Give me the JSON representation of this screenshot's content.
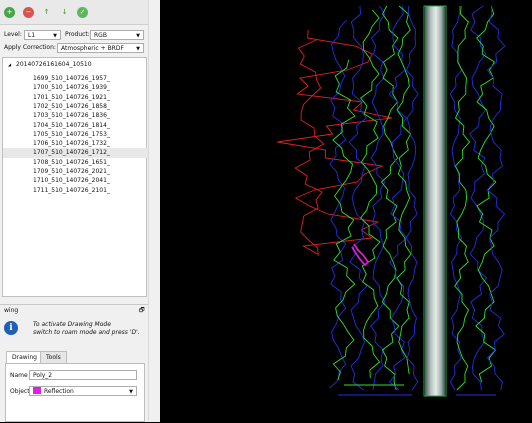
{
  "toolbar": {
    "icons": [
      {
        "name": "add-icon",
        "glyph": "+",
        "color": "#47a447"
      },
      {
        "name": "remove-icon",
        "glyph": "−",
        "color": "#d9534f"
      },
      {
        "name": "move-up-icon",
        "glyph": "↑",
        "color": "#4cae4c"
      },
      {
        "name": "move-down-icon",
        "glyph": "↓",
        "color": "#4cae4c"
      },
      {
        "name": "apply-icon",
        "glyph": "✓",
        "color": "#5cb85c"
      }
    ]
  },
  "settings": {
    "level_label": "Level:",
    "level_value": "L1",
    "product_label": "Product:",
    "product_value": "RGB",
    "correction_label": "Apply Correction:",
    "correction_value": "Atmospheric + BRDF"
  },
  "tree": {
    "root": "20140726161604_10510",
    "root_glyph": "◢",
    "items": [
      "1699_510_140726_1957_",
      "1700_510_140726_1939_",
      "1701_510_140726_1921_",
      "1702_510_140726_1858_",
      "1703_510_140726_1836_",
      "1704_510_140726_1814_",
      "1705_510_140726_1753_",
      "1706_510_140726_1732_",
      "1707_510_140726_1712_",
      "1708_510_140726_1651_",
      "1709_510_140726_2021_",
      "1710_510_140726_2041_",
      "1711_510_140726_2101_"
    ],
    "selected_index": 8
  },
  "dock": {
    "title": "wing",
    "float_glyph": "🗗",
    "close_glyph": "✕",
    "info_glyph": "i",
    "info_text_1": "To activate Drawing Mode",
    "info_text_2": "switch to roam mode and press 'D'.",
    "tabs": [
      "Drawing",
      "Tools"
    ],
    "name_label": "Name",
    "name_value": "Poly_2",
    "object_label": "Object",
    "object_value": "Reflection",
    "object_color": "#e020e0"
  },
  "colors": {
    "panel_bg": "#f0f0f0",
    "selection_bg": "#e8e8e8",
    "flightline_red": "#e02020",
    "flightline_green": "#30e030",
    "flightline_blue": "#2030e0",
    "polygon_magenta": "#d020d0"
  }
}
